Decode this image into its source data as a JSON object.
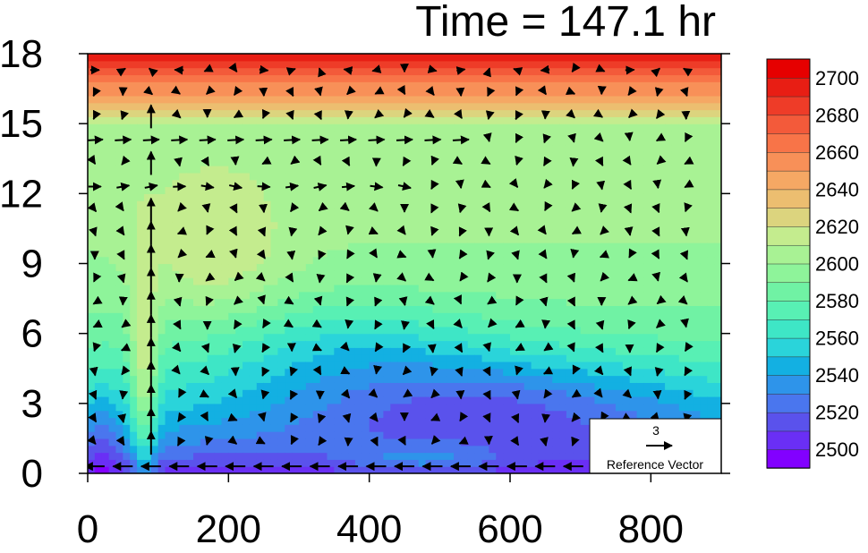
{
  "chart_data": {
    "type": "heatmap",
    "title": "Time = 147.1 hr",
    "xlabel": "",
    "ylabel": "",
    "xlim": [
      0,
      900
    ],
    "ylim": [
      0,
      18
    ],
    "x_ticks": [
      "0",
      "200",
      "400",
      "600",
      "800"
    ],
    "y_ticks": [
      "0",
      "3",
      "6",
      "9",
      "12",
      "15",
      "18"
    ],
    "colorbar": {
      "min": 2490,
      "max": 2710,
      "step": 10,
      "labels": [
        "2500",
        "2520",
        "2540",
        "2560",
        "2580",
        "2600",
        "2620",
        "2640",
        "2660",
        "2680",
        "2700"
      ],
      "colors": [
        "#8200ff",
        "#6a2ff5",
        "#5a52ec",
        "#4a76ee",
        "#2e94ea",
        "#13b0e2",
        "#2ad4da",
        "#3ee6c6",
        "#58f0b4",
        "#70f2a4",
        "#8ef49a",
        "#a8f294",
        "#c4ec8e",
        "#dcd47e",
        "#ecbe70",
        "#f5a864",
        "#f89058",
        "#f87448",
        "#f35a3a",
        "#ee3c28",
        "#e81e14",
        "#e60000"
      ]
    },
    "field_description": "contour-filled scalar field with vector overlay",
    "reference_vector": {
      "value": "3",
      "label": "Reference Vector"
    }
  },
  "colors": {
    "background": "#ffffff",
    "axis": "#000000",
    "vector": "#000000"
  }
}
